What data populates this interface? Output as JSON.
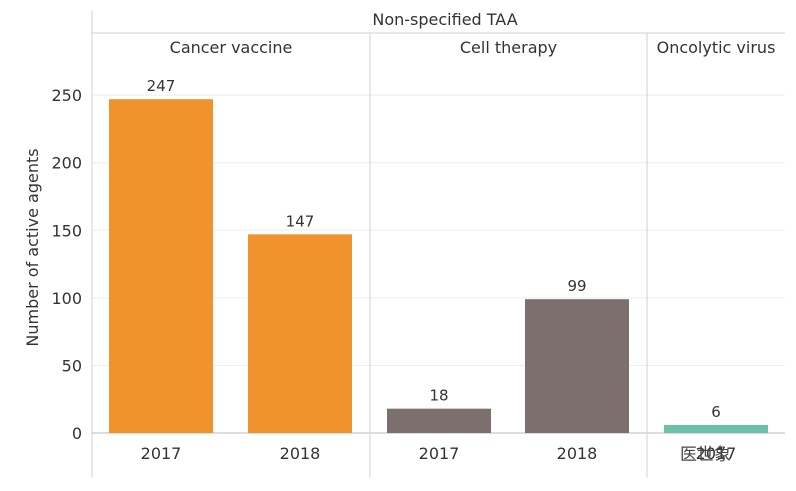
{
  "chart_data": {
    "type": "bar",
    "title": "Non-specified TAA",
    "ylabel": "Number of active agents",
    "ylim": [
      0,
      280
    ],
    "yticks": [
      0,
      50,
      100,
      150,
      200,
      250
    ],
    "grid": true,
    "groups": [
      {
        "name": "Cancer vaccine",
        "color": "#F0922E",
        "bars": [
          {
            "category": "2017",
            "value": 247,
            "label": "247"
          },
          {
            "category": "2018",
            "value": 147,
            "label": "147"
          }
        ]
      },
      {
        "name": "Cell therapy",
        "color": "#7B706D",
        "bars": [
          {
            "category": "2017",
            "value": 18,
            "label": "18"
          },
          {
            "category": "2018",
            "value": 99,
            "label": "99"
          }
        ]
      },
      {
        "name": "Oncolytic virus",
        "color": "#6DBFAA",
        "bars": [
          {
            "category": "2017",
            "value": 6,
            "label": "6"
          }
        ]
      }
    ]
  },
  "watermark": "医世象"
}
